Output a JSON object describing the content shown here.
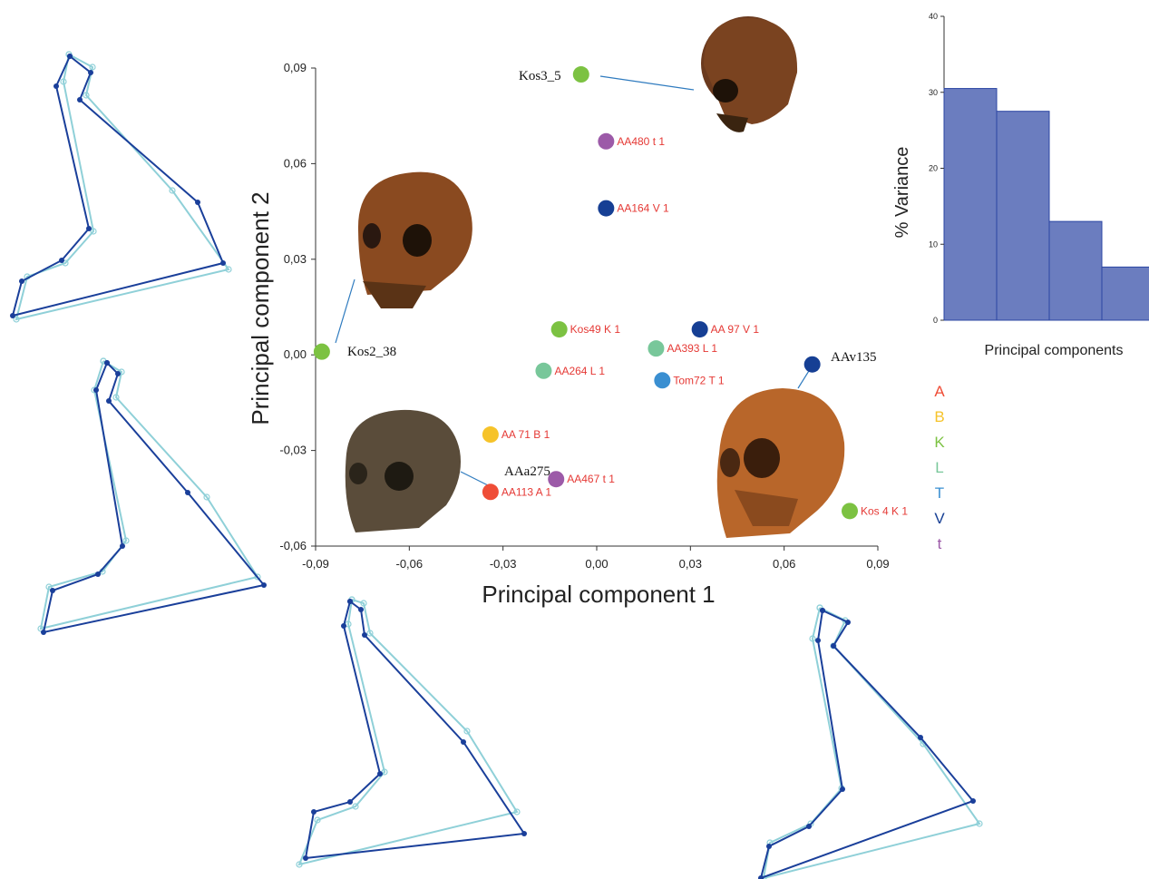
{
  "chart_data": [
    {
      "type": "scatter",
      "xlabel": "Principal component 1",
      "ylabel": "Principal component 2",
      "xlim": [
        -0.09,
        0.09
      ],
      "ylim": [
        -0.06,
        0.09
      ],
      "xticks": [
        "-0,09",
        "-0,06",
        "-0,03",
        "0,00",
        "0,03",
        "0,06",
        "0,09"
      ],
      "yticks": [
        "-0,06",
        "-0,03",
        "0,00",
        "0,03",
        "0,06",
        "0,09"
      ],
      "points": [
        {
          "label": "AA480 t 1",
          "x": 0.003,
          "y": 0.067,
          "group": "t"
        },
        {
          "label": "AA164 V 1",
          "x": 0.003,
          "y": 0.046,
          "group": "V"
        },
        {
          "label": "Kos49 K 1",
          "x": -0.012,
          "y": 0.008,
          "group": "K"
        },
        {
          "label": "AA 97 V 1",
          "x": 0.033,
          "y": 0.008,
          "group": "V"
        },
        {
          "label": "AA393 L 1",
          "x": 0.019,
          "y": 0.002,
          "group": "L"
        },
        {
          "label": "AA264 L 1",
          "x": -0.017,
          "y": -0.005,
          "group": "L"
        },
        {
          "label": "Tom72 T 1",
          "x": 0.021,
          "y": -0.008,
          "group": "T"
        },
        {
          "label": "AA 71 B 1",
          "x": -0.034,
          "y": -0.025,
          "group": "B"
        },
        {
          "label": "AA467 t 1",
          "x": -0.013,
          "y": -0.039,
          "group": "t"
        },
        {
          "label": "AA113 A 1",
          "x": -0.034,
          "y": -0.043,
          "group": "A"
        },
        {
          "label": "Kos 4 K 1",
          "x": 0.081,
          "y": -0.049,
          "group": "K"
        },
        {
          "label": "",
          "x": 0.069,
          "y": -0.003,
          "group": "V"
        },
        {
          "label": "",
          "x": -0.088,
          "y": 0.001,
          "group": "K"
        },
        {
          "label": "",
          "x": -0.005,
          "y": 0.088,
          "group": "K"
        }
      ],
      "callouts": [
        {
          "text": "Kos3_5"
        },
        {
          "text": "Kos2_38"
        },
        {
          "text": "AAv135"
        },
        {
          "text": "AAa275"
        }
      ],
      "legend": [
        "A",
        "B",
        "K",
        "L",
        "T",
        "V",
        "t"
      ],
      "group_colors": {
        "A": "#ef4d37",
        "B": "#f6c32a",
        "K": "#7cc242",
        "L": "#78c79a",
        "T": "#3a8fd1",
        "V": "#163f94",
        "t": "#9c5aa8"
      }
    },
    {
      "type": "bar",
      "ylabel": "% Variance",
      "xlabel": "Principal components",
      "ylim": [
        0,
        40
      ],
      "yticks": [
        "0",
        "10",
        "20",
        "30",
        "40"
      ],
      "values": [
        30.5,
        27.5,
        13,
        7
      ],
      "bar_color": "#6b7dbf"
    }
  ],
  "colors": {
    "mean_shape": "#8fd0d8",
    "specimen_shape": "#1a3f9a"
  },
  "icons": [
    "skull-photo-1",
    "skull-photo-2",
    "skull-photo-3",
    "skull-photo-4"
  ]
}
